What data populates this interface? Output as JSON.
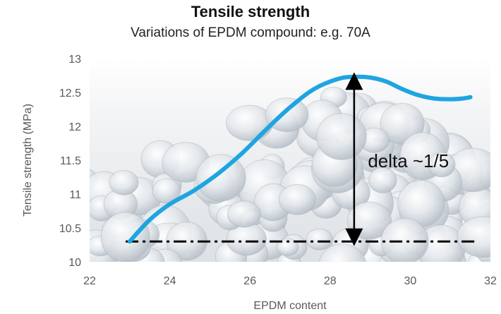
{
  "chart_data": {
    "type": "line",
    "title": "Tensile strength",
    "subtitle": "Variations of EPDM compound: e.g. 70A",
    "xlabel": "EPDM content",
    "ylabel": "Tensile strength (MPa)",
    "xlim": [
      22,
      32
    ],
    "ylim": [
      10,
      13
    ],
    "xticks": [
      "22",
      "24",
      "26",
      "28",
      "30",
      "32"
    ],
    "yticks": [
      "10",
      "10.5",
      "11",
      "11.5",
      "12",
      "12.5",
      "13"
    ],
    "grid": false,
    "series": [
      {
        "color": "#1ea5e0",
        "x": [
          23.0,
          23.5,
          24.0,
          24.6,
          25.2,
          25.8,
          26.4,
          27.0,
          27.6,
          28.2,
          28.6,
          29.0,
          29.4,
          29.8,
          30.2,
          30.6,
          31.0,
          31.3,
          31.5
        ],
        "y": [
          10.3,
          10.62,
          10.85,
          11.05,
          11.3,
          11.6,
          11.95,
          12.28,
          12.55,
          12.7,
          12.73,
          12.72,
          12.66,
          12.55,
          12.46,
          12.41,
          12.4,
          12.41,
          12.43
        ]
      }
    ],
    "reference_line": {
      "y": 10.3,
      "x_start": 22.9,
      "x_end": 31.7,
      "style": "dash-dot",
      "color": "#000000"
    },
    "delta_arrow": {
      "x": 28.6,
      "y_from": 10.3,
      "y_to": 12.73
    },
    "annotation": {
      "text": "delta ~1/5",
      "x": 29.4,
      "y": 11.5
    },
    "background": "translucent white beads (EPDM granules) photo"
  }
}
